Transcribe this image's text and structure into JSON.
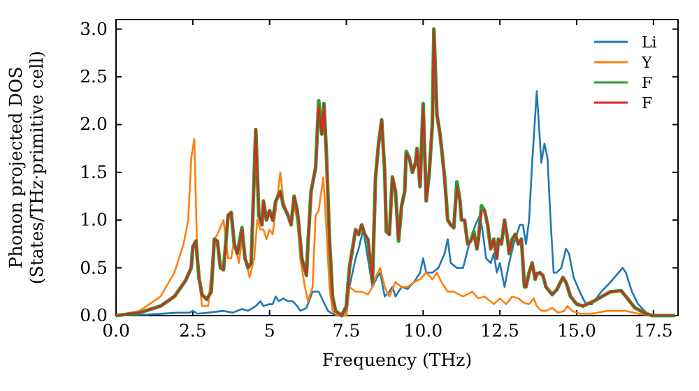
{
  "chart_data": {
    "type": "line",
    "xlabel": "Frequency (THz)",
    "ylabel": "Phonon projected DOS\n(States/THz·primitive cell)",
    "xlim": [
      0,
      18.3
    ],
    "ylim": [
      0,
      3.1
    ],
    "xticks": [
      {
        "value": 0,
        "label": "0.0"
      },
      2.5,
      5.0,
      7.5,
      {
        "value": 10,
        "label": "10.0"
      },
      12.5,
      {
        "value": 15,
        "label": "15.0"
      },
      17.5
    ],
    "yticks": [
      {
        "value": 0,
        "label": "0.0"
      },
      0.5,
      {
        "value": 1,
        "label": "1.0"
      },
      1.5,
      {
        "value": 2,
        "label": "2.0"
      },
      2.5,
      {
        "value": 3,
        "label": "3.0"
      }
    ],
    "grid": false,
    "legend": "top right",
    "marker": "none",
    "line_style": "solid",
    "series": [
      {
        "name": "Li",
        "color": "#1f77b4",
        "x": [
          0,
          1,
          2,
          2.4,
          2.5,
          2.65,
          3.0,
          3.5,
          3.8,
          4.1,
          4.3,
          4.55,
          4.7,
          4.8,
          5.0,
          5.1,
          5.2,
          5.3,
          5.45,
          5.6,
          5.75,
          5.9,
          6.0,
          6.2,
          6.4,
          6.6,
          6.75,
          6.9,
          7.05,
          7.2,
          7.5,
          7.6,
          7.8,
          7.9,
          8.05,
          8.2,
          8.35,
          8.5,
          8.6,
          8.75,
          8.9,
          9.0,
          9.1,
          9.3,
          9.5,
          9.7,
          9.9,
          10.0,
          10.1,
          10.3,
          10.5,
          10.7,
          10.8,
          10.9,
          11.1,
          11.3,
          11.5,
          11.7,
          11.85,
          11.95,
          12.05,
          12.2,
          12.3,
          12.4,
          12.5,
          12.65,
          12.8,
          12.95,
          13.05,
          13.15,
          13.25,
          13.35,
          13.45,
          13.55,
          13.7,
          13.85,
          13.95,
          14.05,
          14.15,
          14.25,
          14.35,
          14.5,
          14.65,
          14.75,
          14.9,
          15.1,
          15.3,
          15.5,
          15.8,
          16.1,
          16.5,
          16.6,
          16.8,
          17.0,
          17.3,
          17.5,
          18.2
        ],
        "values": [
          0,
          0.01,
          0.03,
          0.03,
          0.05,
          0.02,
          0.03,
          0.05,
          0.03,
          0.07,
          0.05,
          0.1,
          0.15,
          0.1,
          0.12,
          0.12,
          0.2,
          0.15,
          0.18,
          0.15,
          0.15,
          0.1,
          0.05,
          0.08,
          0.25,
          0.25,
          0.15,
          0.05,
          0.02,
          0,
          0,
          0.3,
          0.6,
          0.7,
          0.9,
          0.6,
          0.3,
          0.4,
          0.45,
          0.2,
          0.25,
          0.3,
          0.2,
          0.3,
          0.28,
          0.35,
          0.45,
          0.6,
          0.45,
          0.45,
          0.5,
          0.65,
          0.8,
          0.55,
          0.5,
          0.5,
          0.75,
          0.95,
          1.05,
          0.85,
          0.6,
          0.55,
          0.65,
          0.45,
          0.55,
          0.3,
          0.55,
          0.75,
          0.85,
          0.95,
          0.95,
          0.75,
          1.0,
          1.6,
          2.35,
          1.6,
          1.8,
          1.65,
          1.0,
          0.45,
          0.45,
          0.5,
          0.7,
          0.65,
          0.4,
          0.25,
          0.12,
          0.12,
          0.25,
          0.35,
          0.5,
          0.45,
          0.25,
          0.12,
          0.02,
          0,
          0
        ]
      },
      {
        "name": "Y",
        "color": "#ff7f0e",
        "x": [
          0,
          0.77,
          1.45,
          1.9,
          2.2,
          2.35,
          2.45,
          2.55,
          2.65,
          2.8,
          3.0,
          3.2,
          3.3,
          3.5,
          3.65,
          3.75,
          3.85,
          4.0,
          4.1,
          4.2,
          4.35,
          4.5,
          4.6,
          4.7,
          4.8,
          4.9,
          5.0,
          5.1,
          5.2,
          5.35,
          5.45,
          5.6,
          5.7,
          5.8,
          5.9,
          6.0,
          6.15,
          6.25,
          6.4,
          6.5,
          6.6,
          6.75,
          6.85,
          6.95,
          7.05,
          7.2,
          7.5,
          7.6,
          7.8,
          8.0,
          8.2,
          8.35,
          8.45,
          8.6,
          8.75,
          8.9,
          9.1,
          9.3,
          9.5,
          9.7,
          9.9,
          10.1,
          10.3,
          10.45,
          10.6,
          10.8,
          11.0,
          11.3,
          11.6,
          11.8,
          12.0,
          12.3,
          12.5,
          12.7,
          12.9,
          13.1,
          13.3,
          13.45,
          13.6,
          13.7,
          13.85,
          14.0,
          14.2,
          14.4,
          14.6,
          14.7,
          14.85,
          15.1,
          15.5,
          16.0,
          16.6,
          17.0,
          17.4,
          18.2
        ],
        "values": [
          0,
          0.05,
          0.2,
          0.45,
          0.75,
          1.0,
          1.65,
          1.85,
          0.55,
          0.1,
          0.1,
          0.8,
          0.85,
          1.0,
          0.6,
          0.6,
          0.8,
          0.55,
          0.8,
          0.6,
          0.4,
          0.6,
          1.0,
          0.9,
          0.9,
          0.8,
          0.9,
          0.85,
          1.1,
          1.5,
          1.2,
          1.05,
          1.0,
          1.15,
          1.0,
          0.6,
          0.3,
          0.15,
          0.3,
          1.05,
          1.1,
          1.45,
          0.9,
          0.3,
          0.05,
          0,
          0,
          0.3,
          0.25,
          0.25,
          0.22,
          0.3,
          0.4,
          0.5,
          0.3,
          0.2,
          0.35,
          0.3,
          0.3,
          0.35,
          0.38,
          0.45,
          0.38,
          0.45,
          0.35,
          0.25,
          0.25,
          0.2,
          0.25,
          0.18,
          0.2,
          0.12,
          0.18,
          0.12,
          0.2,
          0.18,
          0.13,
          0.12,
          0.18,
          0.1,
          0.05,
          0.05,
          0.08,
          0.03,
          0.05,
          0.1,
          0.05,
          0.02,
          0.02,
          0.05,
          0.05,
          0.02,
          0,
          0
        ]
      },
      {
        "name": "F",
        "color": "#2ca02c",
        "x": [
          0,
          0.77,
          1.45,
          1.9,
          2.27,
          2.45,
          2.5,
          2.6,
          2.7,
          2.8,
          2.95,
          3.1,
          3.2,
          3.3,
          3.4,
          3.5,
          3.65,
          3.75,
          3.85,
          3.95,
          4.1,
          4.2,
          4.3,
          4.4,
          4.55,
          4.65,
          4.75,
          4.8,
          4.9,
          5.0,
          5.1,
          5.2,
          5.35,
          5.45,
          5.6,
          5.7,
          5.8,
          5.9,
          5.95,
          6.05,
          6.2,
          6.25,
          6.35,
          6.5,
          6.6,
          6.7,
          6.77,
          6.85,
          6.95,
          7.05,
          7.15,
          7.35,
          7.5,
          7.6,
          7.7,
          7.8,
          7.9,
          8.0,
          8.1,
          8.2,
          8.3,
          8.35,
          8.45,
          8.55,
          8.65,
          8.75,
          8.8,
          8.9,
          9.0,
          9.1,
          9.2,
          9.3,
          9.4,
          9.45,
          9.55,
          9.65,
          9.75,
          9.8,
          9.9,
          10.0,
          10.1,
          10.2,
          10.3,
          10.35,
          10.45,
          10.55,
          10.65,
          10.7,
          10.8,
          10.9,
          11.0,
          11.1,
          11.2,
          11.25,
          11.35,
          11.45,
          11.55,
          11.65,
          11.75,
          11.8,
          11.9,
          12.0,
          12.1,
          12.2,
          12.3,
          12.4,
          12.45,
          12.55,
          12.65,
          12.75,
          12.8,
          12.9,
          13.0,
          13.1,
          13.2,
          13.3,
          13.35,
          13.45,
          13.55,
          13.65,
          13.7,
          13.8,
          13.9,
          14.0,
          14.2,
          14.35,
          14.55,
          14.65,
          14.8,
          15.0,
          15.2,
          15.55,
          16.1,
          16.45,
          16.65,
          16.9,
          17.2,
          17.45,
          18.2
        ],
        "values": [
          0,
          0.03,
          0.1,
          0.2,
          0.37,
          0.5,
          0.72,
          0.78,
          0.4,
          0.22,
          0.17,
          0.25,
          0.8,
          0.78,
          0.5,
          0.48,
          1.05,
          1.08,
          0.75,
          0.65,
          0.92,
          0.6,
          0.5,
          0.55,
          1.95,
          1.05,
          0.95,
          1.2,
          1.0,
          1.1,
          1.0,
          1.2,
          1.3,
          1.15,
          1.05,
          0.95,
          1.25,
          1.1,
          0.95,
          0.6,
          0.42,
          0.75,
          1.3,
          1.55,
          2.25,
          1.9,
          2.22,
          1.7,
          0.8,
          0.2,
          0.05,
          0,
          0.1,
          0.5,
          0.7,
          0.9,
          0.85,
          0.95,
          0.85,
          0.8,
          0.5,
          0.35,
          1.45,
          1.8,
          2.05,
          1.5,
          0.88,
          0.85,
          1.45,
          1.3,
          0.78,
          1.15,
          1.3,
          1.72,
          1.65,
          1.5,
          1.6,
          1.75,
          1.35,
          2.22,
          1.2,
          1.5,
          2.0,
          3.0,
          2.1,
          1.9,
          1.6,
          1.45,
          1.0,
          0.95,
          0.92,
          1.4,
          1.2,
          1.0,
          1.0,
          0.75,
          0.78,
          0.88,
          0.7,
          0.8,
          1.15,
          1.1,
          0.95,
          0.7,
          0.8,
          0.6,
          0.8,
          0.75,
          1.0,
          0.8,
          0.65,
          0.8,
          0.85,
          0.75,
          0.8,
          0.3,
          0.3,
          0.45,
          0.55,
          0.38,
          0.43,
          0.45,
          0.42,
          0.3,
          0.22,
          0.27,
          0.4,
          0.35,
          0.2,
          0.12,
          0.1,
          0.15,
          0.25,
          0.26,
          0.18,
          0.08,
          0.03,
          0,
          0
        ]
      },
      {
        "name": "F",
        "color": "#d62728",
        "x": [
          0,
          0.77,
          1.45,
          1.9,
          2.27,
          2.45,
          2.5,
          2.6,
          2.7,
          2.8,
          2.95,
          3.1,
          3.2,
          3.3,
          3.4,
          3.5,
          3.65,
          3.75,
          3.85,
          3.95,
          4.1,
          4.2,
          4.3,
          4.4,
          4.55,
          4.65,
          4.75,
          4.8,
          4.9,
          5.0,
          5.1,
          5.2,
          5.35,
          5.45,
          5.6,
          5.7,
          5.8,
          5.9,
          5.95,
          6.05,
          6.2,
          6.25,
          6.35,
          6.5,
          6.6,
          6.7,
          6.77,
          6.85,
          6.95,
          7.05,
          7.15,
          7.35,
          7.5,
          7.6,
          7.7,
          7.8,
          7.9,
          8.0,
          8.1,
          8.2,
          8.3,
          8.35,
          8.45,
          8.55,
          8.65,
          8.75,
          8.8,
          8.9,
          9.0,
          9.1,
          9.2,
          9.3,
          9.4,
          9.45,
          9.55,
          9.65,
          9.75,
          9.8,
          9.9,
          10.0,
          10.1,
          10.2,
          10.3,
          10.35,
          10.45,
          10.55,
          10.65,
          10.7,
          10.8,
          10.9,
          11.0,
          11.1,
          11.2,
          11.25,
          11.35,
          11.45,
          11.55,
          11.65,
          11.75,
          11.8,
          11.9,
          12.0,
          12.1,
          12.2,
          12.3,
          12.4,
          12.45,
          12.55,
          12.65,
          12.75,
          12.8,
          12.9,
          13.0,
          13.1,
          13.2,
          13.3,
          13.35,
          13.45,
          13.55,
          13.65,
          13.7,
          13.8,
          13.9,
          14.0,
          14.2,
          14.35,
          14.55,
          14.65,
          14.8,
          15.0,
          15.2,
          15.55,
          16.1,
          16.45,
          16.65,
          16.9,
          17.2,
          17.45,
          18.2
        ],
        "values": [
          0,
          0.03,
          0.1,
          0.2,
          0.37,
          0.5,
          0.72,
          0.78,
          0.4,
          0.22,
          0.17,
          0.25,
          0.8,
          0.78,
          0.5,
          0.48,
          1.05,
          1.08,
          0.75,
          0.65,
          0.9,
          0.6,
          0.5,
          0.55,
          1.95,
          1.05,
          0.95,
          1.2,
          1.0,
          1.1,
          1.0,
          1.2,
          1.3,
          1.15,
          1.05,
          0.95,
          1.25,
          1.1,
          1.0,
          0.6,
          0.42,
          0.75,
          1.3,
          1.55,
          2.2,
          1.9,
          2.22,
          1.7,
          0.8,
          0.2,
          0.05,
          0,
          0.1,
          0.5,
          0.7,
          0.9,
          0.85,
          0.95,
          0.85,
          0.8,
          0.5,
          0.35,
          1.45,
          1.8,
          2.05,
          1.5,
          0.9,
          0.85,
          1.45,
          1.3,
          0.8,
          1.15,
          1.3,
          1.7,
          1.65,
          1.5,
          1.6,
          1.75,
          1.35,
          2.2,
          1.2,
          1.5,
          2.0,
          3.0,
          2.1,
          1.9,
          1.6,
          1.4,
          1.0,
          0.95,
          0.92,
          1.35,
          1.2,
          1.0,
          1.0,
          0.75,
          0.78,
          0.85,
          0.7,
          0.8,
          1.1,
          1.1,
          0.95,
          0.7,
          0.8,
          0.6,
          0.8,
          0.75,
          1.0,
          0.8,
          0.65,
          0.8,
          0.85,
          0.75,
          0.8,
          0.3,
          0.3,
          0.45,
          0.55,
          0.38,
          0.45,
          0.45,
          0.42,
          0.3,
          0.22,
          0.27,
          0.4,
          0.35,
          0.2,
          0.12,
          0.1,
          0.15,
          0.25,
          0.26,
          0.18,
          0.08,
          0.03,
          0,
          0
        ]
      }
    ]
  }
}
